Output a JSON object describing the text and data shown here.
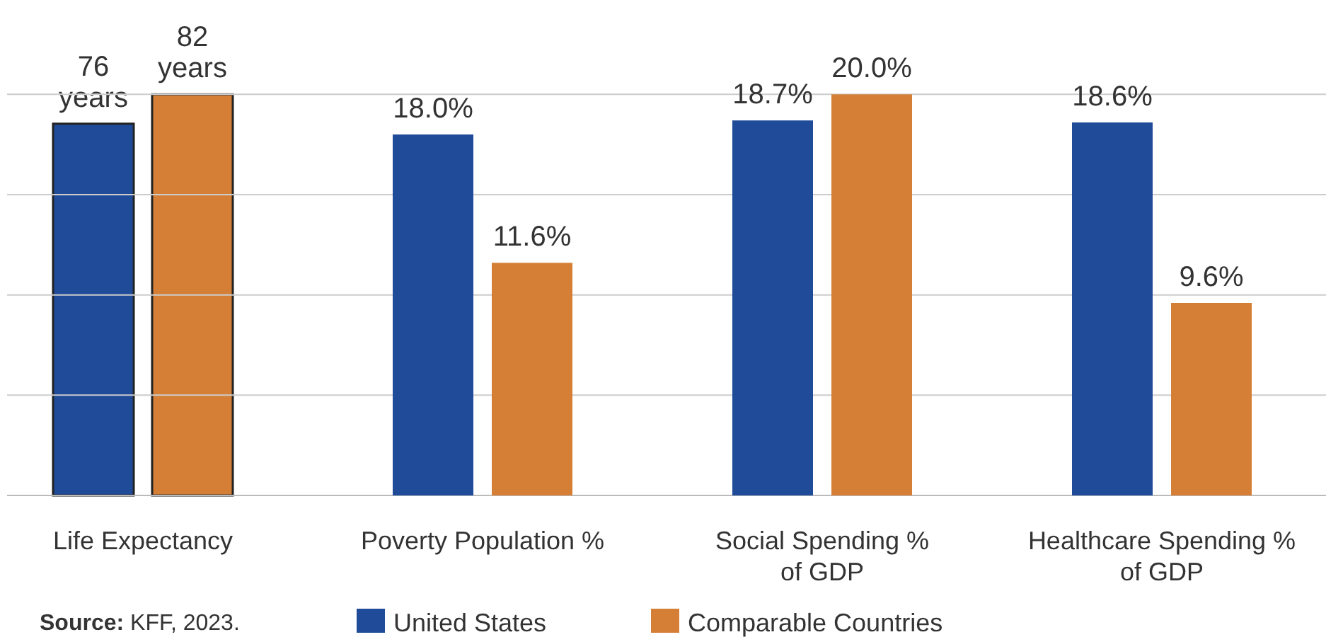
{
  "chart_data": [
    {
      "type": "bar",
      "categories": [
        "Life Expectancy"
      ],
      "tick_labels": "x",
      "series": [
        {
          "color": "#1f4b99",
          "values": [
            76
          ],
          "value_labels": [
            "76\nyears"
          ]
        },
        {
          "color": "#d47f35",
          "values": [
            82
          ],
          "value_labels": [
            "82\nyears"
          ]
        }
      ]
    },
    {
      "type": "bar",
      "categories": [
        "Poverty Population %",
        "Social Spending % of GDP",
        "Healthcare Spending % of GDP"
      ],
      "yticks": [
        {
          "value": 0,
          "label": null
        },
        {
          "value": 5,
          "label": null
        },
        {
          "value": 10,
          "label": null
        },
        {
          "value": 15,
          "label": null
        },
        {
          "value": 20,
          "label": null
        }
      ],
      "tick_labels": "x",
      "grid": "y",
      "legend": "bottom",
      "series": [
        {
          "name": "United States",
          "color": "#1f4b99",
          "values": [
            18.0,
            18.7,
            18.6
          ],
          "value_labels": [
            "18.0%",
            "18.7%",
            "18.6%"
          ]
        },
        {
          "name": "Comparable Countries",
          "color": "#d47f35",
          "values": [
            11.6,
            20.0,
            9.6
          ],
          "value_labels": [
            "11.6%",
            "20.0%",
            "9.6%"
          ]
        }
      ],
      "annotations": [
        "Source: KFF, 2023."
      ]
    }
  ]
}
